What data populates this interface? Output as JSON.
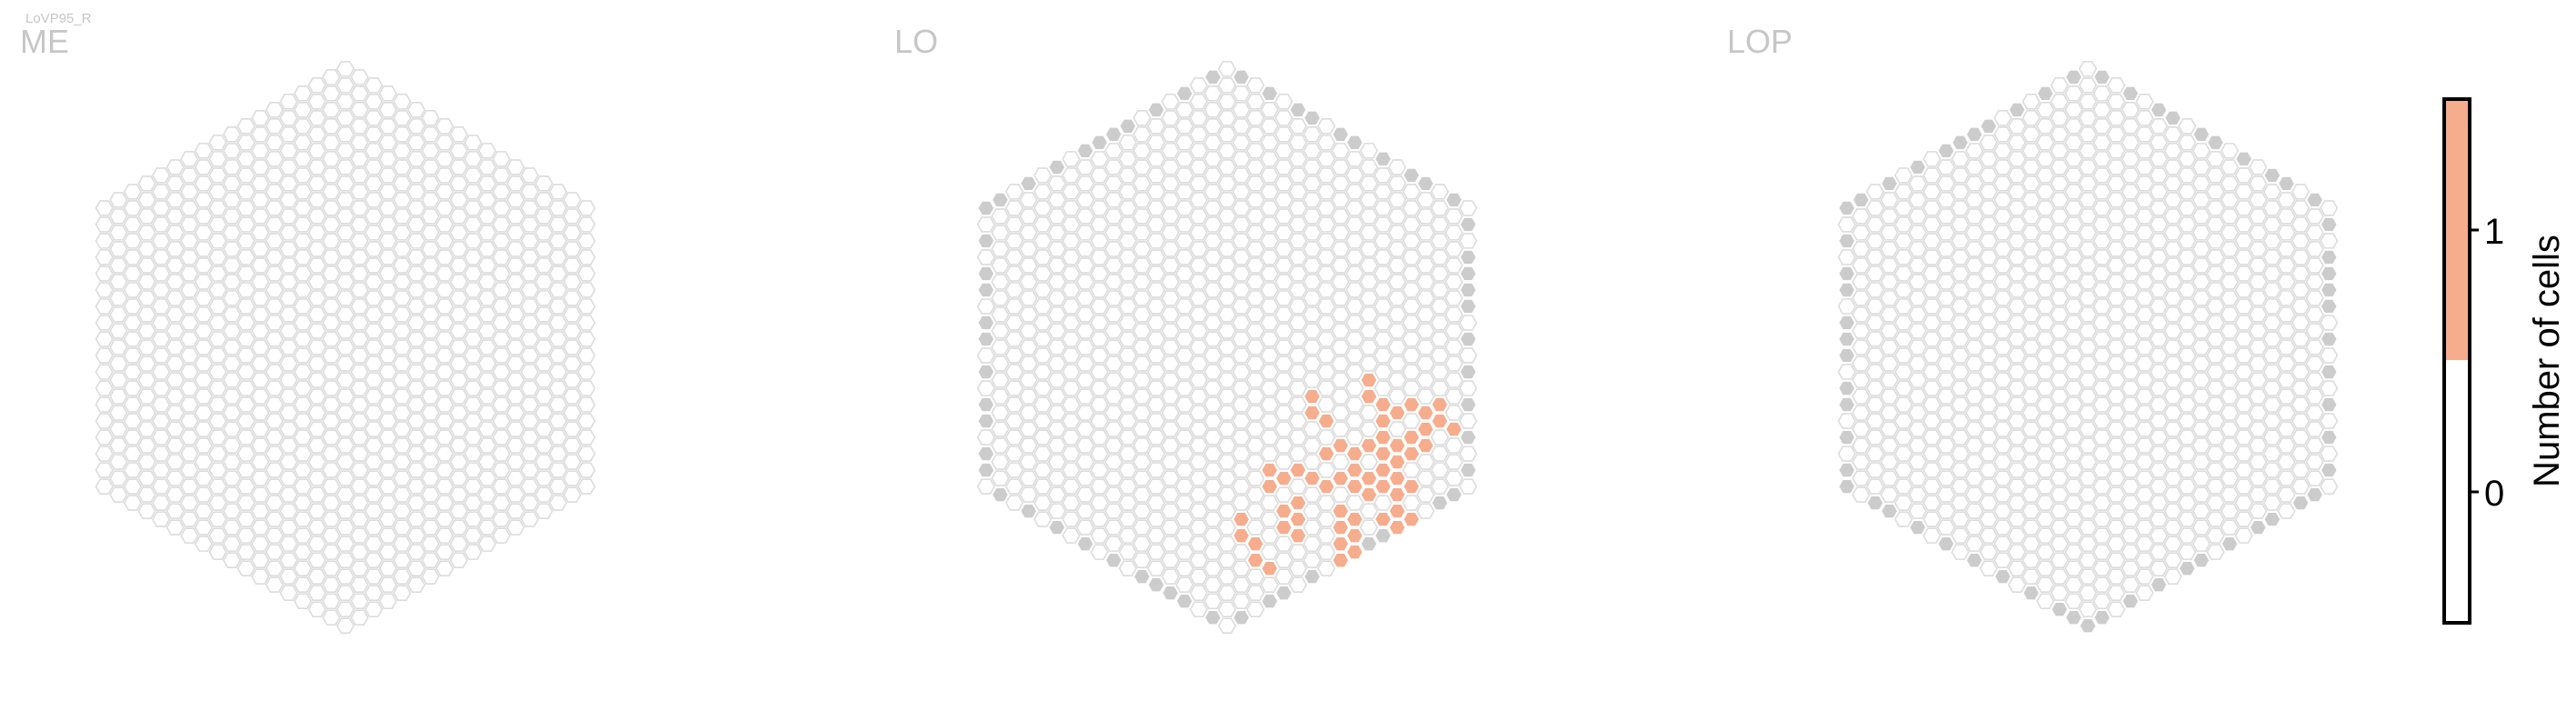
{
  "figure": {
    "cell_type": "LoVP95_R",
    "panels": [
      {
        "label": "ME"
      },
      {
        "label": "LO"
      },
      {
        "label": "LOP"
      }
    ]
  },
  "colorbar": {
    "label": "Number of cells",
    "ticks": [
      "0",
      "1"
    ],
    "range": [
      -0.5,
      1.5
    ],
    "bins": [
      {
        "from": -0.5,
        "to": 0.5,
        "color": "#ffffff"
      },
      {
        "from": 0.5,
        "to": 1.5,
        "color": "#f6ad8e"
      }
    ]
  },
  "colors": {
    "empty_hex_stroke": "#dcdcdc",
    "edge_hex_fill": "#cccccc",
    "count_1_fill": "#f6ad8e",
    "panel_label": "#c6c6c6",
    "cell_type_label": "#c6c6c6",
    "colorbar_frame": "#000000"
  },
  "chart_data": {
    "type": "heatmap",
    "description_of_grid": "hexagonal column grid per neuropil; value = number of LoVP95_R cells innervating each column",
    "panels": [
      {
        "neuropil": "ME",
        "grid_radius": 17,
        "counts": {
          "1": []
        },
        "out_of_roi_edge": false
      },
      {
        "neuropil": "LO",
        "grid_radius": 17,
        "counts": {
          "1": [
            [
              10,
              -3
            ],
            [
              10,
              -2
            ],
            [
              11,
              -2
            ],
            [
              11,
              -1
            ],
            [
              11,
              0
            ],
            [
              10,
              1
            ],
            [
              11,
              1
            ],
            [
              12,
              1
            ],
            [
              11,
              2
            ],
            [
              12,
              2
            ],
            [
              13,
              2
            ],
            [
              10,
              3
            ],
            [
              11,
              3
            ],
            [
              12,
              3
            ],
            [
              12,
              4
            ],
            [
              13,
              4
            ],
            [
              5,
              5
            ],
            [
              6,
              5
            ],
            [
              7,
              5
            ],
            [
              3,
              6
            ],
            [
              4,
              6
            ],
            [
              3,
              7
            ],
            [
              5,
              7
            ],
            [
              4,
              8
            ],
            [
              5,
              8
            ],
            [
              4,
              9
            ],
            [
              5,
              9
            ],
            [
              1,
              10
            ],
            [
              1,
              11
            ],
            [
              2,
              11
            ],
            [
              2,
              12
            ],
            [
              3,
              12
            ],
            [
              6,
              12
            ],
            [
              6,
              0
            ],
            [
              6,
              1
            ],
            [
              7,
              1
            ],
            [
              8,
              2
            ],
            [
              9,
              2
            ],
            [
              9,
              3
            ],
            [
              8,
              4
            ],
            [
              9,
              4
            ],
            [
              10,
              4
            ],
            [
              7,
              3
            ],
            [
              13,
              -1
            ],
            [
              13,
              0
            ],
            [
              12,
              0
            ],
            [
              14,
              -1
            ],
            [
              15,
              -4
            ],
            [
              15,
              -3
            ],
            [
              14,
              -3
            ],
            [
              16,
              -3
            ],
            [
              14,
              -2
            ],
            [
              13,
              -3
            ],
            [
              12,
              -2
            ],
            [
              8,
              6
            ],
            [
              9,
              6
            ],
            [
              8,
              7
            ],
            [
              9,
              7
            ],
            [
              8,
              8
            ],
            [
              9,
              8
            ],
            [
              8,
              9
            ],
            [
              9,
              9
            ],
            [
              8,
              10
            ],
            [
              10,
              9
            ],
            [
              11,
              9
            ],
            [
              12,
              9
            ],
            [
              11,
              7
            ],
            [
              12,
              8
            ],
            [
              13,
              8
            ],
            [
              13,
              9
            ],
            [
              13,
              10
            ],
            [
              11,
              5
            ],
            [
              12,
              5
            ]
          ]
        },
        "out_of_roi_edge": true
      },
      {
        "neuropil": "LOP",
        "grid_radius": 17,
        "counts": {
          "1": []
        },
        "out_of_roi_edge": true
      }
    ]
  }
}
